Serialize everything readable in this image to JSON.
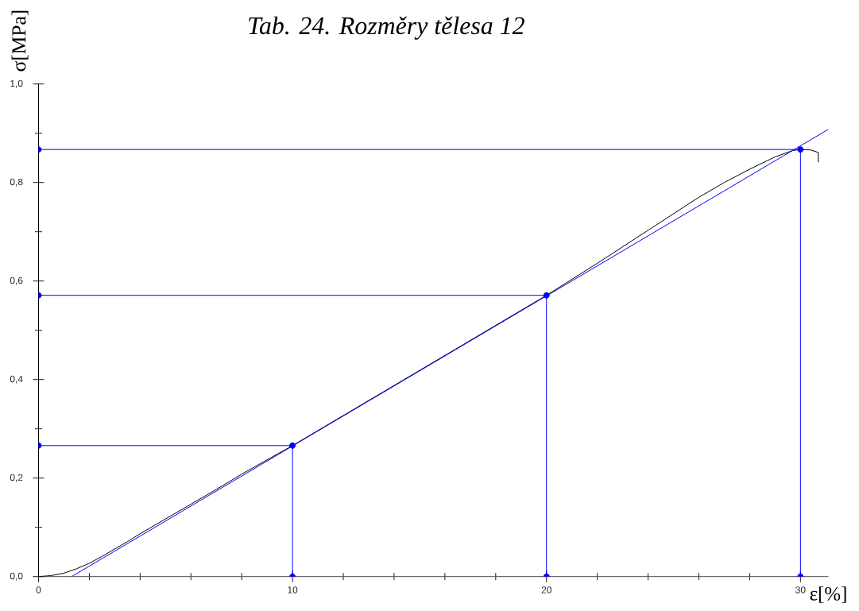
{
  "chart_data": {
    "type": "line",
    "title": "Tab. 24. Rozměry tělesa 12",
    "xlabel": "ε[%]",
    "ylabel": "σ[MPa]",
    "xlim": [
      0,
      31.1
    ],
    "ylim": [
      0,
      1.0
    ],
    "xticks": [
      0,
      {
        "value": 2,
        "label": null
      },
      {
        "value": 4,
        "label": null
      },
      {
        "value": 6,
        "label": null
      },
      {
        "value": 8,
        "label": null
      },
      10,
      {
        "value": 12,
        "label": null
      },
      {
        "value": 14,
        "label": null
      },
      {
        "value": 16,
        "label": null
      },
      {
        "value": 18,
        "label": null
      },
      20,
      {
        "value": 22,
        "label": null
      },
      {
        "value": 24,
        "label": null
      },
      {
        "value": 26,
        "label": null
      },
      {
        "value": 28,
        "label": null
      },
      30
    ],
    "yticks": [
      {
        "value": 0,
        "label": "0,0"
      },
      {
        "value": 0.1,
        "label": null
      },
      {
        "value": 0.2,
        "label": "0,2"
      },
      {
        "value": 0.3,
        "label": null
      },
      {
        "value": 0.4,
        "label": "0,4"
      },
      {
        "value": 0.5,
        "label": null
      },
      {
        "value": 0.6,
        "label": "0,6"
      },
      {
        "value": 0.7,
        "label": null
      },
      {
        "value": 0.8,
        "label": "0,8"
      },
      {
        "value": 0.9,
        "label": null
      },
      {
        "value": 1.0,
        "label": "1,0"
      }
    ],
    "series": [
      {
        "color": "#000000",
        "marker": "none",
        "x": [
          0,
          0.5,
          1,
          1.5,
          2,
          2.5,
          3,
          3.5,
          4,
          5,
          6,
          7,
          8,
          9,
          10,
          12,
          14,
          16,
          18,
          20,
          22,
          24,
          26,
          27,
          28,
          29,
          29.7,
          30,
          30.4,
          30.7,
          30.7
        ],
        "values": [
          0,
          0.002,
          0.007,
          0.016,
          0.027,
          0.041,
          0.056,
          0.071,
          0.087,
          0.117,
          0.147,
          0.177,
          0.208,
          0.237,
          0.266,
          0.327,
          0.388,
          0.449,
          0.51,
          0.571,
          0.636,
          0.703,
          0.77,
          0.8,
          0.827,
          0.852,
          0.865,
          0.867,
          0.866,
          0.861,
          0.841
        ]
      },
      {
        "color": "#0000ff",
        "marker": "none",
        "x": [
          1.3,
          31.1
        ],
        "values": [
          0,
          0.908
        ]
      },
      {
        "color": "#0000ff",
        "marker": "circle",
        "x": [
          0,
          10,
          10
        ],
        "values": [
          0.266,
          0.266,
          0
        ]
      },
      {
        "color": "#0000ff",
        "marker": "circle",
        "x": [
          0,
          20,
          20
        ],
        "values": [
          0.571,
          0.571,
          0
        ]
      },
      {
        "color": "#0000ff",
        "marker": "circle",
        "x": [
          0,
          30,
          30
        ],
        "values": [
          0.867,
          0.867,
          0
        ]
      }
    ]
  }
}
